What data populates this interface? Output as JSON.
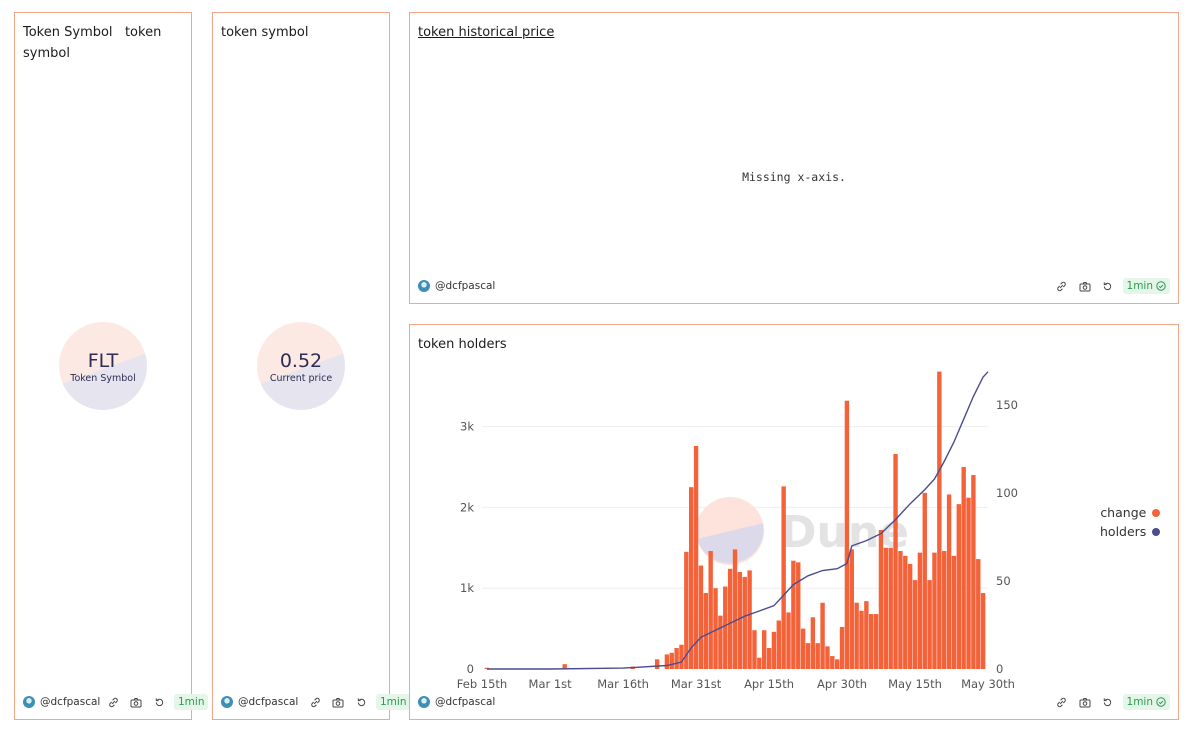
{
  "panels": {
    "symbol_left": {
      "title": "Token Symbol",
      "title_sub": "token symbol",
      "value": "FLT",
      "label": "Token Symbol",
      "author": "@dcfpascal",
      "badge": "1min"
    },
    "symbol_mid": {
      "title": "token symbol",
      "value": "0.52",
      "label": "Current price",
      "author": "@dcfpascal",
      "badge": "1min"
    },
    "price": {
      "title": "token historical price",
      "message": "Missing x-axis.",
      "author": "@dcfpascal",
      "badge": "1min"
    },
    "holders": {
      "title": "token holders",
      "watermark": "Dune",
      "author": "@dcfpascal",
      "badge": "1min"
    }
  },
  "icons": {
    "link": "link-icon",
    "camera": "camera-icon",
    "refresh": "refresh-icon",
    "check": "check-circle-icon"
  },
  "colors": {
    "border": "#f3a68a",
    "change": "#f4623a",
    "holders": "#4c4c8f",
    "badge_bg": "#e3f6e8",
    "badge_text": "#2f9a4f"
  },
  "chart_data": {
    "type": "bar",
    "x_ticks": [
      "Feb 15th",
      "Mar 1st",
      "Mar 16th",
      "Mar 31st",
      "Apr 15th",
      "Apr 30th",
      "May 15th",
      "May 30th"
    ],
    "x_range": [
      "2022-02-15",
      "2022-05-30"
    ],
    "y_left": {
      "ticks": [
        "0",
        "1k",
        "2k",
        "3k"
      ],
      "range": [
        0,
        3700
      ]
    },
    "y_right": {
      "ticks": [
        "0",
        "50",
        "100",
        "150"
      ],
      "range": [
        0,
        170
      ]
    },
    "legend": [
      "change",
      "holders"
    ],
    "legend_position": "right",
    "series": [
      {
        "name": "change",
        "type": "bar",
        "axis": "left",
        "points": [
          [
            "2022-02-16",
            15
          ],
          [
            "2022-03-04",
            60
          ],
          [
            "2022-03-18",
            30
          ],
          [
            "2022-03-23",
            120
          ],
          [
            "2022-03-25",
            180
          ],
          [
            "2022-03-26",
            200
          ],
          [
            "2022-03-27",
            260
          ],
          [
            "2022-03-28",
            300
          ],
          [
            "2022-03-29",
            1450
          ],
          [
            "2022-03-30",
            2250
          ],
          [
            "2022-03-31",
            2760
          ],
          [
            "2022-04-01",
            1280
          ],
          [
            "2022-04-02",
            940
          ],
          [
            "2022-04-03",
            1460
          ],
          [
            "2022-04-04",
            1000
          ],
          [
            "2022-04-05",
            660
          ],
          [
            "2022-04-06",
            1020
          ],
          [
            "2022-04-07",
            1240
          ],
          [
            "2022-04-08",
            1480
          ],
          [
            "2022-04-09",
            1200
          ],
          [
            "2022-04-10",
            1140
          ],
          [
            "2022-04-11",
            1220
          ],
          [
            "2022-04-12",
            480
          ],
          [
            "2022-04-13",
            140
          ],
          [
            "2022-04-14",
            480
          ],
          [
            "2022-04-15",
            260
          ],
          [
            "2022-04-16",
            460
          ],
          [
            "2022-04-17",
            600
          ],
          [
            "2022-04-18",
            2260
          ],
          [
            "2022-04-19",
            700
          ],
          [
            "2022-04-20",
            1340
          ],
          [
            "2022-04-21",
            1320
          ],
          [
            "2022-04-22",
            500
          ],
          [
            "2022-04-23",
            320
          ],
          [
            "2022-04-24",
            640
          ],
          [
            "2022-04-25",
            320
          ],
          [
            "2022-04-26",
            820
          ],
          [
            "2022-04-27",
            280
          ],
          [
            "2022-04-28",
            160
          ],
          [
            "2022-04-29",
            120
          ],
          [
            "2022-04-30",
            520
          ],
          [
            "2022-05-01",
            3320
          ],
          [
            "2022-05-02",
            1480
          ],
          [
            "2022-05-03",
            820
          ],
          [
            "2022-05-04",
            720
          ],
          [
            "2022-05-05",
            840
          ],
          [
            "2022-05-06",
            680
          ],
          [
            "2022-05-07",
            680
          ],
          [
            "2022-05-08",
            1720
          ],
          [
            "2022-05-09",
            1500
          ],
          [
            "2022-05-10",
            1500
          ],
          [
            "2022-05-11",
            2660
          ],
          [
            "2022-05-12",
            1460
          ],
          [
            "2022-05-13",
            1400
          ],
          [
            "2022-05-14",
            1300
          ],
          [
            "2022-05-15",
            1100
          ],
          [
            "2022-05-16",
            1440
          ],
          [
            "2022-05-17",
            2180
          ],
          [
            "2022-05-18",
            1100
          ],
          [
            "2022-05-19",
            1440
          ],
          [
            "2022-05-20",
            3680
          ],
          [
            "2022-05-21",
            1460
          ],
          [
            "2022-05-22",
            2160
          ],
          [
            "2022-05-23",
            1400
          ],
          [
            "2022-05-24",
            2040
          ],
          [
            "2022-05-25",
            2500
          ],
          [
            "2022-05-26",
            2120
          ],
          [
            "2022-05-27",
            2400
          ],
          [
            "2022-05-28",
            1360
          ],
          [
            "2022-05-29",
            940
          ]
        ]
      },
      {
        "name": "holders",
        "type": "line",
        "axis": "right",
        "points": [
          [
            "2022-02-16",
            0
          ],
          [
            "2022-03-01",
            0
          ],
          [
            "2022-03-16",
            0.5
          ],
          [
            "2022-03-25",
            2
          ],
          [
            "2022-03-28",
            4
          ],
          [
            "2022-03-30",
            12
          ],
          [
            "2022-04-01",
            18
          ],
          [
            "2022-04-04",
            22
          ],
          [
            "2022-04-07",
            26
          ],
          [
            "2022-04-10",
            30
          ],
          [
            "2022-04-13",
            33
          ],
          [
            "2022-04-16",
            36
          ],
          [
            "2022-04-18",
            42
          ],
          [
            "2022-04-20",
            48
          ],
          [
            "2022-04-23",
            53
          ],
          [
            "2022-04-26",
            56
          ],
          [
            "2022-04-29",
            57
          ],
          [
            "2022-05-01",
            60
          ],
          [
            "2022-05-02",
            70
          ],
          [
            "2022-05-05",
            73
          ],
          [
            "2022-05-08",
            77
          ],
          [
            "2022-05-11",
            85
          ],
          [
            "2022-05-14",
            94
          ],
          [
            "2022-05-17",
            102
          ],
          [
            "2022-05-19",
            108
          ],
          [
            "2022-05-21",
            118
          ],
          [
            "2022-05-23",
            129
          ],
          [
            "2022-05-25",
            142
          ],
          [
            "2022-05-27",
            155
          ],
          [
            "2022-05-29",
            166
          ],
          [
            "2022-05-30",
            169
          ]
        ]
      }
    ]
  }
}
